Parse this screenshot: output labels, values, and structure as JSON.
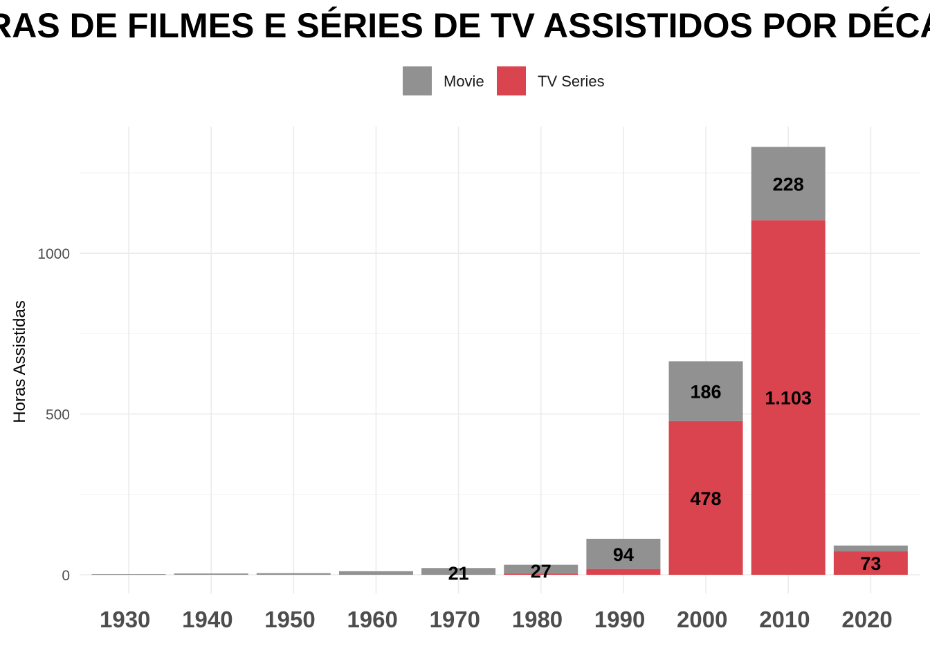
{
  "chart_data": {
    "type": "bar",
    "stacked": true,
    "title": "HORAS DE FILMES E SÉRIES DE TV ASSISTIDOS POR DÉCADA",
    "ylabel": "Horas Assistidas",
    "xlabel": "",
    "categories": [
      "1930",
      "1940",
      "1950",
      "1960",
      "1970",
      "1980",
      "1990",
      "2000",
      "2010",
      "2020"
    ],
    "series": [
      {
        "name": "TV Series",
        "color": "#d9444f",
        "values": [
          0,
          0,
          0,
          0,
          0,
          4,
          18,
          478,
          1103,
          73
        ],
        "labels": [
          "",
          "",
          "",
          "",
          "",
          "",
          "",
          "478",
          "1.103",
          "73"
        ]
      },
      {
        "name": "Movie",
        "color": "#919191",
        "values": [
          2,
          4,
          5,
          11,
          21,
          27,
          94,
          186,
          228,
          18
        ],
        "labels": [
          "",
          "",
          "",
          "",
          "21",
          "27",
          "94",
          "186",
          "228",
          ""
        ]
      }
    ],
    "yticks": [
      "0",
      "500",
      "1000"
    ],
    "ylim": [
      -10,
      1390
    ],
    "grid": true,
    "legend_position": "top"
  }
}
